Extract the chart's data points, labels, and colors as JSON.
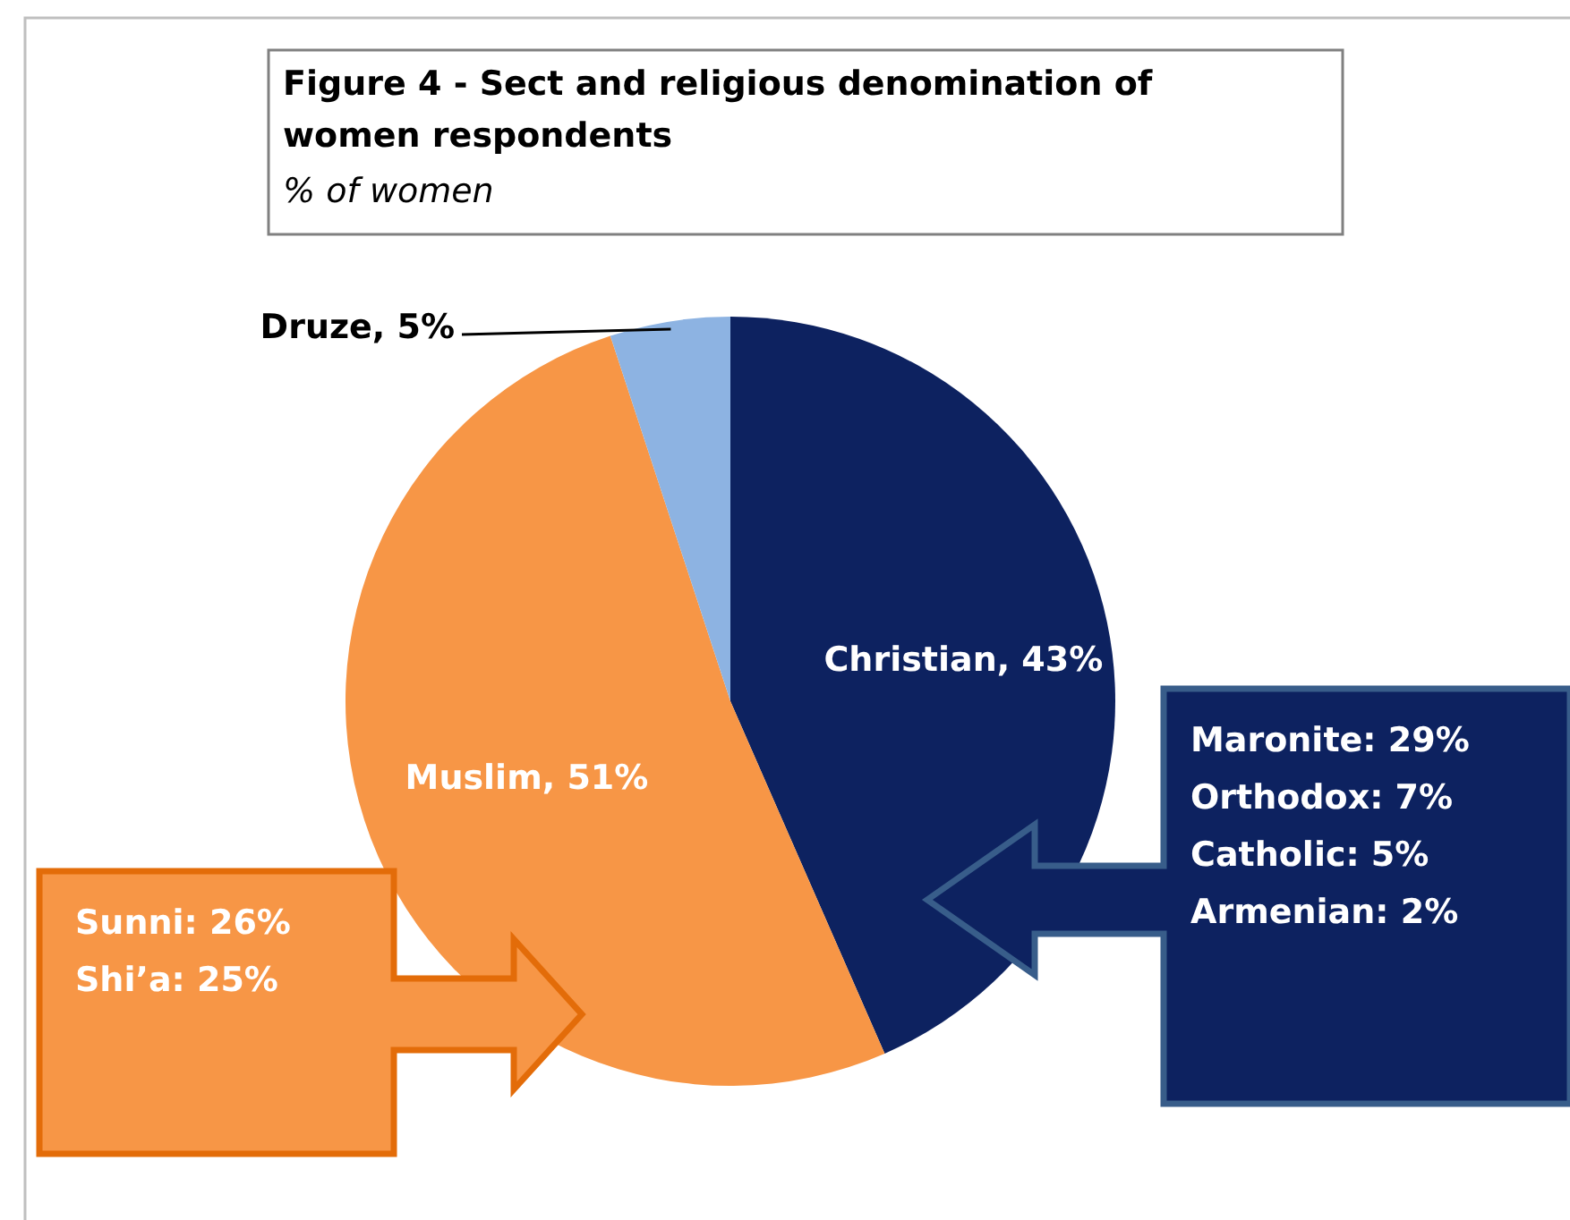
{
  "chart_data": {
    "type": "pie",
    "title": "Figure 4 - Sect and religious denomination of women respondents",
    "subtitle": "% of women",
    "categories": [
      "Christian",
      "Muslim",
      "Druze"
    ],
    "values": [
      43,
      51,
      5
    ],
    "colors": [
      "#0d2260",
      "#f79646",
      "#8db3e2"
    ],
    "value_labels": [
      "43%",
      "51%",
      "5%"
    ],
    "annotations": [
      "Maronite: 29%\nOrthodox: 7%\nCatholic: 5%\nArmenian: 2%",
      "Sunni: 26%\nShi’a: 25%"
    ]
  }
}
